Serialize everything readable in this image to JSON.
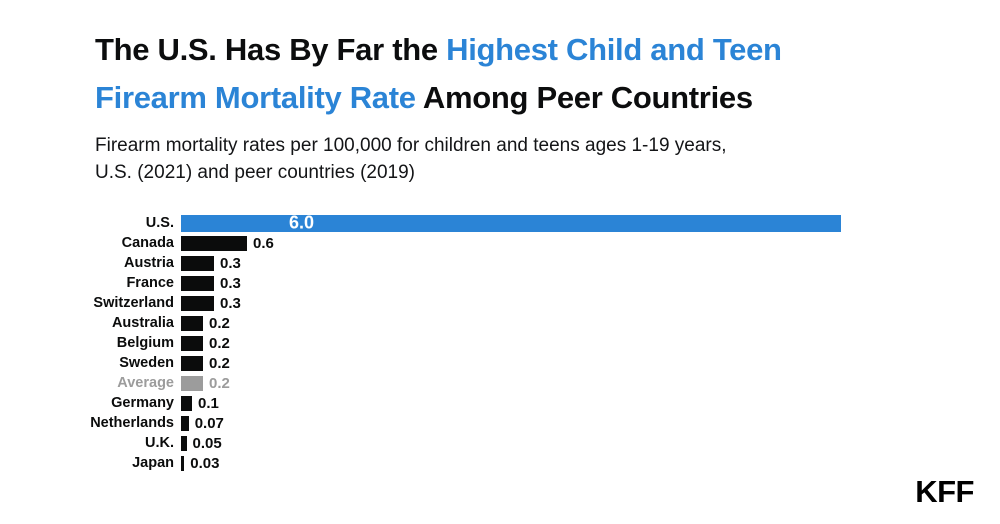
{
  "title": {
    "line1_dark": "The U.S. Has By Far the ",
    "line1_blue": "Highest Child and Teen",
    "line2_blue": "Firearm Mortality Rate",
    "line2_dark": " Among Peer Countries"
  },
  "subtitle": {
    "line1": "Firearm mortality rates per 100,000 for children and teens ages 1-19 years,",
    "line2": "U.S. (2021) and peer countries (2019)"
  },
  "logo_text": "KFF",
  "colors": {
    "blue": "#2b84d6",
    "black": "#0b0c0c",
    "gray": "#9c9c9c"
  },
  "chart_data": {
    "type": "bar",
    "orientation": "horizontal",
    "title": "The U.S. Has By Far the Highest Child and Teen Firearm Mortality Rate Among Peer Countries",
    "subtitle": "Firearm mortality rates per 100,000 for children and teens ages 1-19 years, U.S. (2021) and peer countries (2019)",
    "categories": [
      "U.S.",
      "Canada",
      "Austria",
      "France",
      "Switzerland",
      "Australia",
      "Belgium",
      "Sweden",
      "Average",
      "Germany",
      "Netherlands",
      "U.K.",
      "Japan"
    ],
    "values": [
      6.0,
      0.6,
      0.3,
      0.3,
      0.3,
      0.2,
      0.2,
      0.2,
      0.2,
      0.1,
      0.07,
      0.05,
      0.03
    ],
    "value_labels": [
      "6.0",
      "0.6",
      "0.3",
      "0.3",
      "0.3",
      "0.2",
      "0.2",
      "0.2",
      "0.2",
      "0.1",
      "0.07",
      "0.05",
      "0.03"
    ],
    "bar_color_keys": [
      "blue",
      "black",
      "black",
      "black",
      "black",
      "black",
      "black",
      "black",
      "gray",
      "black",
      "black",
      "black",
      "black"
    ],
    "highlight_category": "U.S.",
    "muted_category": "Average",
    "xlim": [
      0,
      6.6
    ],
    "grid": false,
    "legend": false
  }
}
